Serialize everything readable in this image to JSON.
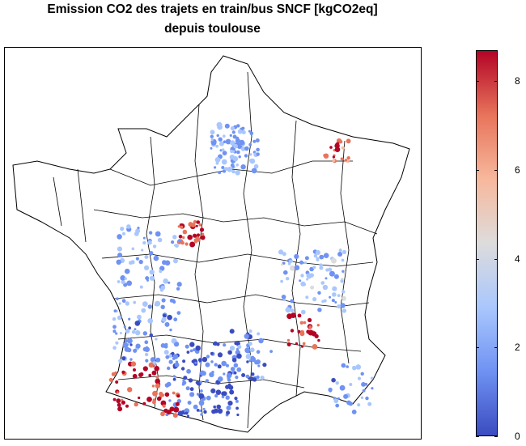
{
  "title": {
    "line1": "Emission CO2 des trajets en train/bus SNCF [kgCO2eq]",
    "line2": "depuis toulouse"
  },
  "chart_data": {
    "type": "heatmap",
    "title": "Emission CO2 des trajets en train/bus SNCF [kgCO2eq] depuis toulouse",
    "colorbar": {
      "min": 0,
      "max": 8.7,
      "ticks": [
        0,
        2,
        4,
        6,
        8
      ],
      "colormap": [
        "#3b4cc0",
        "#6f92f3",
        "#aac7fd",
        "#dddcdc",
        "#f7b89c",
        "#e7745b",
        "#b40426"
      ]
    },
    "legend_position": "right",
    "grid": false
  }
}
